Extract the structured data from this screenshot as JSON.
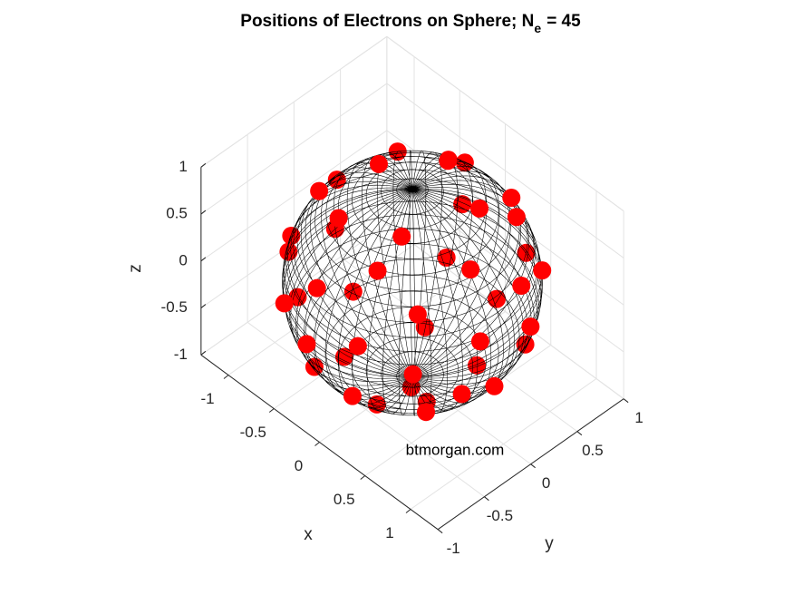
{
  "chart_data": {
    "type": "scatter3d",
    "title": {
      "text": "Positions of Electrons on Sphere; N",
      "subscript": "e",
      "suffix": "= 45"
    },
    "xlabel": "x",
    "ylabel": "y",
    "zlabel": "z",
    "xlim": [
      -1.3,
      1.3
    ],
    "ylim": [
      -1,
      1
    ],
    "zlim": [
      -1,
      1
    ],
    "xticks": [
      -1,
      -0.5,
      0,
      0.5,
      1
    ],
    "yticks": [
      -1,
      -0.5,
      0,
      0.5,
      1
    ],
    "zticks": [
      -1,
      -0.5,
      0,
      0.5,
      1
    ],
    "grid": true,
    "annotations": [
      "btmorgan.com"
    ],
    "series": [
      {
        "color": "#ff0000",
        "x": [
          -0.58,
          -0.14,
          -0.25,
          -0.45,
          -0.92,
          -0.85,
          0.21,
          0.4,
          -0.39,
          -0.31,
          -0.97,
          0.47,
          -0.83,
          0.24,
          -0.88,
          0.28,
          -0.39,
          0.65,
          0.71,
          0.25,
          -0.15,
          0.87,
          -0.73,
          -0.8,
          0.13,
          -0.61,
          0.64,
          -0.24,
          0.93,
          0.96,
          0.73,
          -0.15,
          0.34,
          -0.41,
          0.35,
          -0.3,
          0.72,
          0.08,
          0.89,
          0.89,
          0.24,
          0.12,
          0.67,
          -0.41,
          0.31
        ],
        "y": [
          0.41,
          0.52,
          0.81,
          0.08,
          0.09,
          -0.17,
          0.86,
          0.33,
          0.92,
          -0.49,
          0.12,
          0.66,
          -0.49,
          -0.35,
          -0.47,
          0.95,
          0.75,
          0.76,
          -0.07,
          -0.62,
          -0.88,
          0.32,
          0.08,
          -0.45,
          0.78,
          -0.78,
          -0.57,
          0.37,
          0.36,
          -0.21,
          0.5,
          -0.99,
          -0.92,
          -0.33,
          0.35,
          -0.76,
          -0.7,
          -0.09,
          0.01,
          -0.34,
          -0.88,
          -0.5,
          -0.51,
          0.79,
          -0.15
        ],
        "z": [
          0.7,
          0.84,
          0.54,
          0.89,
          0.38,
          0.49,
          0.46,
          0.85,
          -0.08,
          0.81,
          -0.2,
          0.58,
          0.25,
          0.91,
          0.03,
          -0.14,
          -0.53,
          0.07,
          0.7,
          0.74,
          0.45,
          0.37,
          -0.67,
          -0.41,
          -0.62,
          -0.11,
          0.52,
          -0.9,
          -0.05,
          0.21,
          -0.48,
          -0.07,
          0.21,
          -0.85,
          -0.87,
          -0.58,
          0.03,
          -0.99,
          -0.47,
          -0.31,
          -0.42,
          -0.86,
          -0.54,
          0.47,
          -0.94
        ]
      }
    ]
  }
}
